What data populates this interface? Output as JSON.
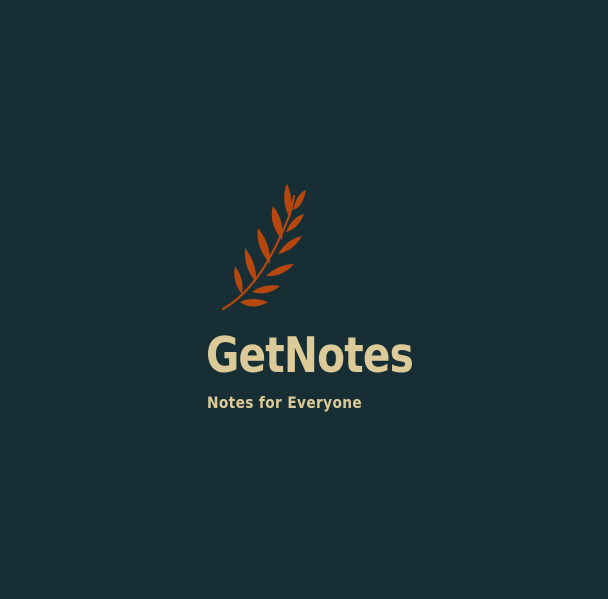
{
  "brand": {
    "name": "GetNotes",
    "tagline": "Notes for Everyone",
    "logo_icon": "leaf-branch-icon"
  },
  "colors": {
    "background": "#162e34",
    "text": "#dccb98",
    "leaf": "#b5470f"
  }
}
